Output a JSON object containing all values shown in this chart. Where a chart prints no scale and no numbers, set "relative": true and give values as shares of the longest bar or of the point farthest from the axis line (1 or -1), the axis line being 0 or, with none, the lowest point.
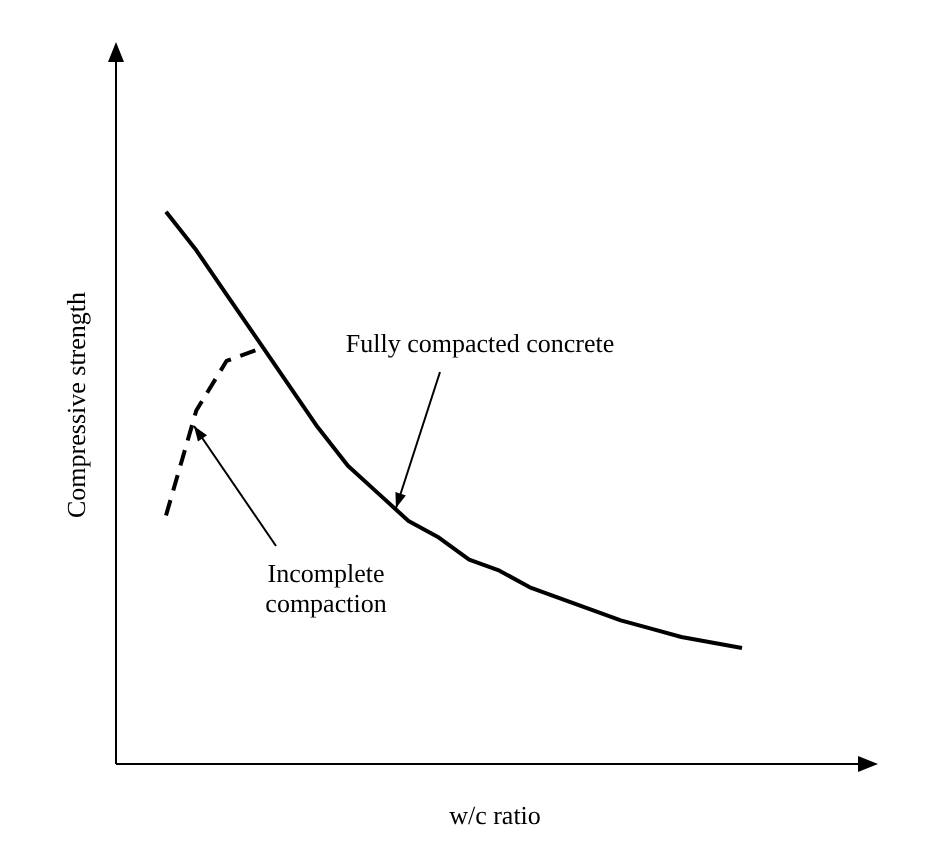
{
  "chart_data": {
    "type": "line",
    "relative": true,
    "xlabel": "w/c ratio",
    "ylabel": "Compressive strength",
    "grid": false,
    "legend": false,
    "marker": "none",
    "categories": [
      null,
      null,
      null,
      null,
      null,
      null,
      null,
      null,
      null,
      null,
      null,
      null,
      null,
      null,
      null,
      null,
      null,
      null,
      null,
      null
    ],
    "series": [
      {
        "color": "#000000",
        "line_style": "solid",
        "values": [
          1,
          0.93,
          0.85,
          0.77,
          0.69,
          0.61,
          0.54,
          0.49,
          0.44,
          0.41,
          0.37,
          0.35,
          0.32,
          0.3,
          0.28,
          0.26,
          0.245,
          0.23,
          0.22,
          0.21
        ]
      },
      {
        "color": "#000000",
        "line_style": "dashed",
        "values": [
          0.45,
          0.64,
          0.73,
          0.75,
          null,
          null,
          null,
          null,
          null,
          null,
          null,
          null,
          null,
          null,
          null,
          null,
          null,
          null,
          null,
          null
        ]
      }
    ],
    "annotations": [
      "Fully compacted concrete",
      "Incomplete compaction"
    ]
  }
}
